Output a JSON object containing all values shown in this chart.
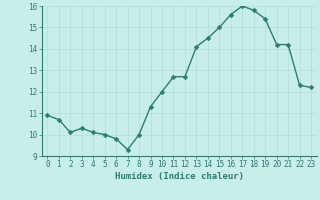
{
  "x": [
    0,
    1,
    2,
    3,
    4,
    5,
    6,
    7,
    8,
    9,
    10,
    11,
    12,
    13,
    14,
    15,
    16,
    17,
    18,
    19,
    20,
    21,
    22,
    23
  ],
  "y": [
    10.9,
    10.7,
    10.1,
    10.3,
    10.1,
    10.0,
    9.8,
    9.3,
    10.0,
    11.3,
    12.0,
    12.7,
    12.7,
    14.1,
    14.5,
    15.0,
    15.6,
    16.0,
    15.8,
    15.4,
    14.2,
    14.2,
    12.3,
    12.2
  ],
  "line_color": "#2d7d6e",
  "marker": "D",
  "marker_size": 2.5,
  "bg_color": "#c8eeea",
  "grid_color": "#b0ddd8",
  "xlabel": "Humidex (Indice chaleur)",
  "ylim": [
    9,
    16
  ],
  "xlim_min": -0.5,
  "xlim_max": 23.5,
  "yticks": [
    9,
    10,
    11,
    12,
    13,
    14,
    15,
    16
  ],
  "xticks": [
    0,
    1,
    2,
    3,
    4,
    5,
    6,
    7,
    8,
    9,
    10,
    11,
    12,
    13,
    14,
    15,
    16,
    17,
    18,
    19,
    20,
    21,
    22,
    23
  ],
  "xlabel_fontsize": 6.5,
  "tick_fontsize": 5.5,
  "line_width": 1.0
}
